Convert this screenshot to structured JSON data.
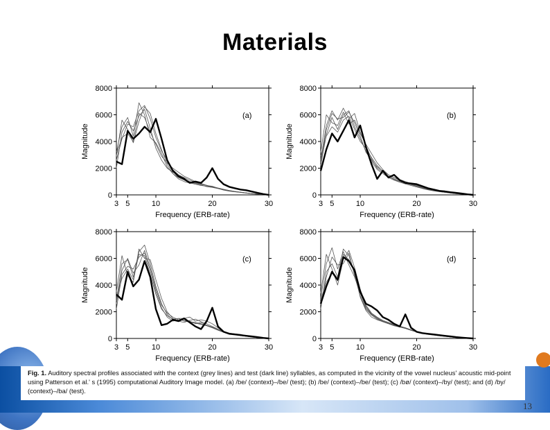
{
  "slide": {
    "title": "Materials",
    "page_number": "13"
  },
  "caption": {
    "label": "Fig. 1.",
    "text": "Auditory spectral profiles associated with the context (grey lines) and test (dark line) syllables, as computed in the vicinity of the vowel nucleus' acoustic mid-point using Patterson et al.' s (1995) computational Auditory Image model. (a) /be/ (context)–/be/ (test); (b) /be/ (context)–/be/ (test); (c) /bø/ (context)–/by/ (test); and (d) /by/ (context)–/ba/ (test)."
  },
  "colors": {
    "test_line": "#000000",
    "context_line": "#555555",
    "band_dark": "#0b4fa2",
    "accent_orange": "#e07a1f"
  },
  "chart_data": [
    {
      "type": "line",
      "panel_label": "(a)",
      "xlabel": "Frequency (ERB-rate)",
      "ylabel": "Magnitude",
      "xlim": [
        3,
        30
      ],
      "ylim": [
        0,
        8000
      ],
      "xticks": [
        3,
        5,
        10,
        20,
        30
      ],
      "yticks": [
        0,
        2000,
        4000,
        6000,
        8000
      ],
      "x": [
        3,
        4,
        5,
        6,
        7,
        8,
        9,
        10,
        11,
        12,
        13,
        14,
        15,
        16,
        17,
        18,
        19,
        20,
        21,
        22,
        23,
        24,
        25,
        26,
        27,
        28,
        29,
        30
      ],
      "series": [
        {
          "name": "test",
          "values": [
            2500,
            2300,
            4800,
            4200,
            4600,
            5100,
            4700,
            5700,
            4200,
            2600,
            1800,
            1400,
            1200,
            900,
            1000,
            900,
            1300,
            2000,
            1200,
            800,
            600,
            500,
            400,
            350,
            250,
            150,
            60,
            0
          ]
        },
        {
          "name": "context 1",
          "values": [
            3200,
            5100,
            5800,
            4400,
            6900,
            6000,
            4300,
            3900,
            3100,
            2100,
            1600,
            1200,
            1000,
            900,
            800,
            700,
            650,
            600,
            500,
            400,
            300,
            250,
            200,
            150,
            100,
            60,
            30,
            0
          ]
        },
        {
          "name": "context 2",
          "values": [
            2600,
            4200,
            5300,
            5100,
            6300,
            6700,
            5700,
            4300,
            3300,
            2600,
            1900,
            1500,
            1200,
            1000,
            900,
            800,
            700,
            650,
            500,
            400,
            320,
            260,
            200,
            150,
            100,
            60,
            30,
            0
          ]
        },
        {
          "name": "context 3",
          "values": [
            2900,
            5600,
            4900,
            3900,
            5500,
            6600,
            6100,
            4600,
            3400,
            2300,
            1600,
            1300,
            1100,
            950,
            850,
            750,
            620,
            560,
            480,
            360,
            280,
            230,
            180,
            130,
            90,
            50,
            20,
            0
          ]
        },
        {
          "name": "context 4",
          "values": [
            2000,
            4700,
            5500,
            4800,
            5900,
            6400,
            5000,
            3500,
            2600,
            2000,
            1700,
            1500,
            1300,
            1100,
            950,
            800,
            700,
            620,
            520,
            420,
            330,
            260,
            200,
            150,
            100,
            60,
            30,
            0
          ]
        },
        {
          "name": "context 5",
          "values": [
            3000,
            4300,
            4600,
            4000,
            6100,
            5800,
            4700,
            3800,
            2900,
            2400,
            2000,
            1700,
            1400,
            1200,
            1000,
            850,
            720,
            600,
            480,
            380,
            300,
            240,
            190,
            140,
            90,
            50,
            20,
            0
          ]
        }
      ]
    },
    {
      "type": "line",
      "panel_label": "(b)",
      "xlabel": "Frequency (ERB-rate)",
      "ylabel": "Magnitude",
      "xlim": [
        3,
        30
      ],
      "ylim": [
        0,
        8000
      ],
      "xticks": [
        3,
        5,
        10,
        20,
        30
      ],
      "yticks": [
        0,
        2000,
        4000,
        6000,
        8000
      ],
      "x": [
        3,
        4,
        5,
        6,
        7,
        8,
        9,
        10,
        11,
        12,
        13,
        14,
        15,
        16,
        17,
        18,
        19,
        20,
        21,
        22,
        23,
        24,
        25,
        26,
        27,
        28,
        29,
        30
      ],
      "series": [
        {
          "name": "test",
          "values": [
            1800,
            3400,
            4600,
            4000,
            4800,
            5600,
            4300,
            5200,
            3600,
            2300,
            1200,
            1800,
            1300,
            1500,
            1100,
            900,
            850,
            800,
            650,
            500,
            400,
            300,
            260,
            200,
            150,
            100,
            40,
            0
          ]
        },
        {
          "name": "context 1",
          "values": [
            2600,
            5200,
            6300,
            5600,
            6500,
            5700,
            6100,
            4700,
            3700,
            2700,
            2000,
            1700,
            1400,
            1200,
            1050,
            900,
            780,
            650,
            520,
            420,
            330,
            260,
            200,
            150,
            100,
            60,
            30,
            0
          ]
        },
        {
          "name": "context 2",
          "values": [
            2200,
            4500,
            5800,
            4900,
            6000,
            6300,
            5100,
            4200,
            3300,
            2500,
            1900,
            1600,
            1300,
            1100,
            950,
            820,
            700,
            590,
            480,
            380,
            300,
            240,
            190,
            140,
            90,
            50,
            20,
            0
          ]
        },
        {
          "name": "context 3",
          "values": [
            3200,
            6000,
            5400,
            5200,
            6200,
            5300,
            5600,
            4600,
            3800,
            3100,
            2400,
            1900,
            1500,
            1300,
            1100,
            950,
            800,
            700,
            560,
            450,
            350,
            280,
            210,
            160,
            110,
            60,
            30,
            0
          ]
        },
        {
          "name": "context 4",
          "values": [
            2400,
            4900,
            6100,
            5700,
            5800,
            6200,
            5400,
            4400,
            3200,
            2600,
            2100,
            1800,
            1500,
            1300,
            1150,
            1000,
            850,
            720,
            600,
            470,
            360,
            280,
            210,
            150,
            100,
            60,
            30,
            0
          ]
        },
        {
          "name": "context 5",
          "values": [
            2900,
            4400,
            5100,
            4700,
            5600,
            5900,
            4900,
            4000,
            3500,
            2800,
            2200,
            1750,
            1400,
            1150,
            1000,
            880,
            760,
            640,
            510,
            400,
            310,
            250,
            190,
            140,
            90,
            50,
            20,
            0
          ]
        }
      ]
    },
    {
      "type": "line",
      "panel_label": "(c)",
      "xlabel": "Frequency (ERB-rate)",
      "ylabel": "Magnitude",
      "xlim": [
        3,
        30
      ],
      "ylim": [
        0,
        8000
      ],
      "xticks": [
        3,
        5,
        10,
        20,
        30
      ],
      "yticks": [
        0,
        2000,
        4000,
        6000,
        8000
      ],
      "x": [
        3,
        4,
        5,
        6,
        7,
        8,
        9,
        10,
        11,
        12,
        13,
        14,
        15,
        16,
        17,
        18,
        19,
        20,
        21,
        22,
        23,
        24,
        25,
        26,
        27,
        28,
        29,
        30
      ],
      "series": [
        {
          "name": "test",
          "values": [
            3300,
            2900,
            5000,
            3900,
            4400,
            5800,
            4600,
            2200,
            1000,
            1100,
            1400,
            1300,
            1500,
            1200,
            900,
            700,
            1300,
            2300,
            900,
            500,
            350,
            300,
            250,
            200,
            150,
            100,
            40,
            0
          ]
        },
        {
          "name": "context 1",
          "values": [
            2800,
            5600,
            5900,
            4600,
            6500,
            7000,
            5600,
            3900,
            2600,
            1800,
            1400,
            1500,
            1500,
            1600,
            1300,
            1400,
            1300,
            1100,
            800,
            500,
            400,
            350,
            300,
            200,
            120,
            60,
            30,
            0
          ]
        },
        {
          "name": "context 2",
          "values": [
            2200,
            4800,
            5400,
            5200,
            6100,
            6400,
            5100,
            3500,
            2300,
            1600,
            1300,
            1400,
            1450,
            1300,
            1100,
            1200,
            1000,
            850,
            650,
            480,
            380,
            300,
            230,
            170,
            110,
            60,
            30,
            0
          ]
        },
        {
          "name": "context 3",
          "values": [
            3500,
            6200,
            4700,
            4200,
            6700,
            6000,
            5900,
            4400,
            3000,
            2000,
            1500,
            1300,
            1200,
            1350,
            1450,
            1250,
            1100,
            900,
            700,
            520,
            400,
            320,
            250,
            180,
            120,
            60,
            30,
            0
          ]
        },
        {
          "name": "context 4",
          "values": [
            2600,
            5100,
            6000,
            4900,
            5500,
            6600,
            5300,
            3700,
            2500,
            1900,
            1600,
            1400,
            1350,
            1200,
            1150,
            1050,
            950,
            800,
            620,
            460,
            360,
            290,
            220,
            160,
            100,
            60,
            30,
            0
          ]
        },
        {
          "name": "context 5",
          "values": [
            3000,
            4500,
            5200,
            4400,
            6300,
            6200,
            4800,
            3300,
            2200,
            1700,
            1450,
            1500,
            1300,
            1250,
            1200,
            1100,
            980,
            820,
            640,
            470,
            370,
            290,
            220,
            160,
            100,
            60,
            30,
            0
          ]
        }
      ]
    },
    {
      "type": "line",
      "panel_label": "(d)",
      "xlabel": "Frequency (ERB-rate)",
      "ylabel": "Magnitude",
      "xlim": [
        3,
        30
      ],
      "ylim": [
        0,
        8000
      ],
      "xticks": [
        3,
        5,
        10,
        20,
        30
      ],
      "yticks": [
        0,
        2000,
        4000,
        6000,
        8000
      ],
      "x": [
        3,
        4,
        5,
        6,
        7,
        8,
        9,
        10,
        11,
        12,
        13,
        14,
        15,
        16,
        17,
        18,
        19,
        20,
        21,
        22,
        23,
        24,
        25,
        26,
        27,
        28,
        29,
        30
      ],
      "series": [
        {
          "name": "test",
          "values": [
            2600,
            3900,
            5000,
            4400,
            6100,
            5800,
            5100,
            3500,
            2600,
            2400,
            2100,
            1600,
            1400,
            1100,
            900,
            1800,
            800,
            500,
            400,
            350,
            300,
            250,
            200,
            150,
            100,
            60,
            30,
            0
          ]
        },
        {
          "name": "context 1",
          "values": [
            3000,
            5600,
            6800,
            5200,
            6500,
            5500,
            4600,
            3400,
            2300,
            1800,
            1500,
            1300,
            1150,
            1000,
            900,
            800,
            650,
            520,
            420,
            350,
            280,
            220,
            170,
            120,
            80,
            50,
            20,
            0
          ]
        },
        {
          "name": "context 2",
          "values": [
            2200,
            5000,
            5600,
            4600,
            6700,
            6200,
            4900,
            3100,
            2100,
            1600,
            1400,
            1250,
            1100,
            950,
            850,
            750,
            600,
            480,
            380,
            300,
            250,
            200,
            150,
            110,
            70,
            40,
            20,
            0
          ]
        },
        {
          "name": "context 3",
          "values": [
            3400,
            6300,
            5200,
            4000,
            5900,
            6600,
            5300,
            3700,
            2500,
            1900,
            1600,
            1350,
            1200,
            1050,
            920,
            800,
            640,
            510,
            400,
            320,
            260,
            210,
            160,
            120,
            80,
            40,
            20,
            0
          ]
        },
        {
          "name": "context 4",
          "values": [
            2500,
            4600,
            6100,
            5500,
            5600,
            6400,
            4700,
            3200,
            2200,
            1750,
            1450,
            1250,
            1100,
            980,
            870,
            760,
            620,
            500,
            400,
            320,
            260,
            210,
            160,
            110,
            70,
            40,
            20,
            0
          ]
        },
        {
          "name": "context 5",
          "values": [
            2900,
            4200,
            4900,
            4300,
            6300,
            5900,
            5000,
            3600,
            2400,
            1850,
            1550,
            1300,
            1150,
            1000,
            880,
            780,
            630,
            500,
            400,
            330,
            270,
            210,
            160,
            110,
            70,
            40,
            20,
            0
          ]
        }
      ]
    }
  ]
}
